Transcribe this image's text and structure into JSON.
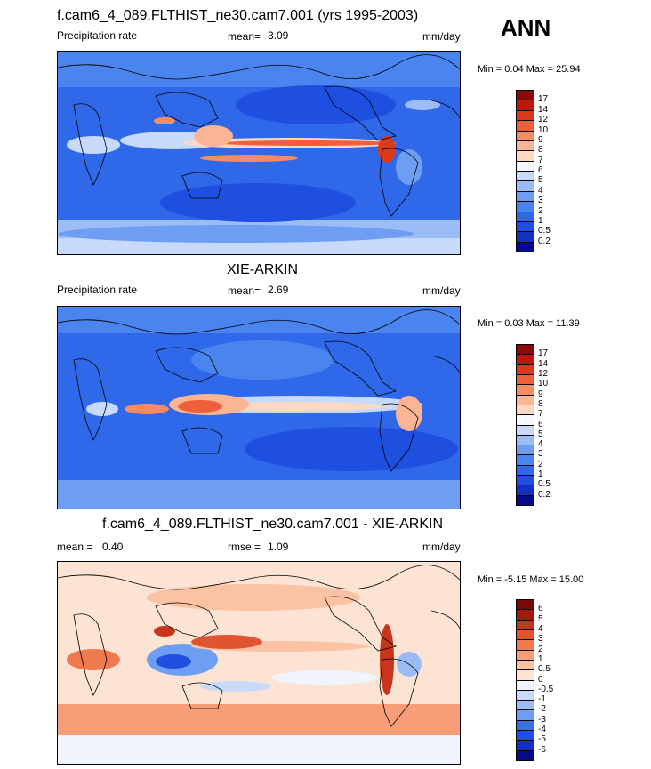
{
  "season": "ANN",
  "panels": [
    {
      "title": "f.cam6_4_089.FLTHIST_ne30.cam7.001 (yrs 1995-2003)",
      "left_label": "Precipitation rate",
      "stat1_label": "mean=",
      "stat1_value": "3.09",
      "stat2_label": "",
      "stat2_value": "",
      "units": "mm/day",
      "minmax": "Min =   0.04 Max =  25.94",
      "colorbar": {
        "levels": [
          "0.2",
          "0.5",
          "1",
          "2",
          "3",
          "4",
          "5",
          "6",
          "7",
          "8",
          "9",
          "10",
          "12",
          "14",
          "17"
        ],
        "colors": [
          "#08088a",
          "#1330c0",
          "#1f4fe0",
          "#2f68e8",
          "#4a84ee",
          "#6e9ef2",
          "#9bbcf6",
          "#c8dafa",
          "#f5f8ff",
          "#fdd9c4",
          "#fbb494",
          "#f78c63",
          "#ee5f3a",
          "#da3a1c",
          "#b91a0b",
          "#8a0a05"
        ]
      }
    },
    {
      "title": "XIE-ARKIN",
      "left_label": "Precipitation rate",
      "stat1_label": "mean=",
      "stat1_value": "2.69",
      "stat2_label": "",
      "stat2_value": "",
      "units": "mm/day",
      "minmax": "Min =   0.03 Max =  11.39",
      "colorbar": {
        "levels": [
          "0.2",
          "0.5",
          "1",
          "2",
          "3",
          "4",
          "5",
          "6",
          "7",
          "8",
          "9",
          "10",
          "12",
          "14",
          "17"
        ],
        "colors": [
          "#08088a",
          "#1330c0",
          "#1f4fe0",
          "#2f68e8",
          "#4a84ee",
          "#6e9ef2",
          "#9bbcf6",
          "#c8dafa",
          "#f5f8ff",
          "#fdd9c4",
          "#fbb494",
          "#f78c63",
          "#ee5f3a",
          "#da3a1c",
          "#b91a0b",
          "#8a0a05"
        ]
      }
    },
    {
      "title": "f.cam6_4_089.FLTHIST_ne30.cam7.001 - XIE-ARKIN",
      "left_label": "mean =",
      "stat1_label": "0.40",
      "stat1_value": "",
      "stat2_label": "rmse =",
      "stat2_value": "1.09",
      "units": "mm/day",
      "minmax": "Min =  -5.15 Max =  15.00",
      "colorbar": {
        "levels": [
          "-6",
          "-5",
          "-4",
          "-3",
          "-2",
          "-1",
          "-0.5",
          "0",
          "0.5",
          "1",
          "2",
          "3",
          "4",
          "5",
          "6"
        ],
        "colors": [
          "#08088a",
          "#1330c0",
          "#1f4fe0",
          "#3a70e6",
          "#6e9ef2",
          "#9bbcf6",
          "#c8dafa",
          "#f0f4fc",
          "#fde3d3",
          "#fbc2a4",
          "#f79d77",
          "#f07a50",
          "#e05530",
          "#c8351b",
          "#a8180a",
          "#7a0805"
        ]
      }
    }
  ],
  "chart_data": [
    {
      "type": "heatmap",
      "title": "f.cam6_4_089.FLTHIST_ne30.cam7.001 (yrs 1995-2003)",
      "variable": "Precipitation rate",
      "units": "mm/day",
      "mean": 3.09,
      "min": 0.04,
      "max": 25.94,
      "season": "ANN"
    },
    {
      "type": "heatmap",
      "title": "XIE-ARKIN",
      "variable": "Precipitation rate",
      "units": "mm/day",
      "mean": 2.69,
      "min": 0.03,
      "max": 11.39
    },
    {
      "type": "heatmap",
      "title": "f.cam6_4_089.FLTHIST_ne30.cam7.001 - XIE-ARKIN",
      "units": "mm/day",
      "mean": 0.4,
      "rmse": 1.09,
      "min": -5.15,
      "max": 15.0
    }
  ]
}
